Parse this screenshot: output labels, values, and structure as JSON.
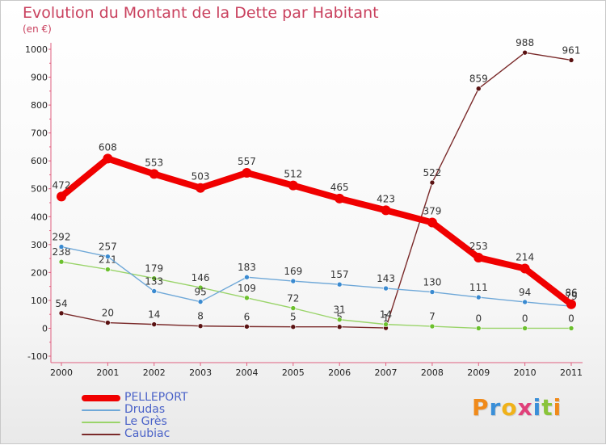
{
  "title": "Evolution du Montant de la Dette par Habitant",
  "subtitle": "(en €)",
  "brand": {
    "text": "Proxiti",
    "letter_colors": [
      "#f08a1a",
      "#3a8fd8",
      "#f0b21a",
      "#e0407a",
      "#3a8fd8",
      "#8ac43a",
      "#f08a1a"
    ]
  },
  "chart_data": {
    "type": "line",
    "categories": [
      "2000",
      "2001",
      "2002",
      "2003",
      "2004",
      "2005",
      "2006",
      "2007",
      "2008",
      "2009",
      "2010",
      "2011"
    ],
    "ylim": [
      -100,
      1000
    ],
    "yticks": [
      -100,
      0,
      100,
      200,
      300,
      400,
      500,
      600,
      700,
      800,
      900,
      1000
    ],
    "ytick_labels": [
      "-100",
      "0",
      "100",
      "200",
      "300",
      "400",
      "500",
      "600",
      "700",
      "800",
      "900",
      "1000"
    ],
    "grid": false,
    "legend_position": "bottom-left",
    "series": [
      {
        "name": "Caubiac",
        "color": "#7a2a2a",
        "marker_color": "#5a1212",
        "values": [
          54,
          20,
          14,
          8,
          6,
          5,
          5,
          1,
          522,
          859,
          988,
          961
        ],
        "labels": [
          "54",
          "20",
          "14",
          "8",
          "6",
          "5",
          "5",
          "1",
          "522",
          "859",
          "988",
          "961"
        ]
      },
      {
        "name": "Le Grès",
        "color": "#9ad46a",
        "marker_color": "#6cc02e",
        "values": [
          238,
          211,
          179,
          146,
          109,
          72,
          31,
          14,
          7,
          0,
          0,
          0
        ],
        "labels": [
          "238",
          "211",
          "179",
          "146",
          "109",
          "72",
          "31",
          "14",
          "7",
          "0",
          "0",
          "0"
        ]
      },
      {
        "name": "Drudas",
        "color": "#6fa8d8",
        "marker_color": "#3a8ad0",
        "values": [
          292,
          257,
          133,
          95,
          183,
          169,
          157,
          143,
          130,
          111,
          94,
          79
        ],
        "labels": [
          "292",
          "257",
          "133",
          "95",
          "183",
          "169",
          "157",
          "143",
          "130",
          "111",
          "94",
          "79"
        ]
      },
      {
        "name": "PELLEPORT",
        "color": "#f00000",
        "marker_color": "#f00000",
        "values": [
          472,
          608,
          553,
          503,
          557,
          512,
          465,
          423,
          379,
          253,
          214,
          86
        ],
        "labels": [
          "472",
          "608",
          "553",
          "503",
          "557",
          "512",
          "465",
          "423",
          "379",
          "253",
          "214",
          "86"
        ]
      }
    ]
  },
  "legend_order": [
    "PELLEPORT",
    "Drudas",
    "Le Grès",
    "Caubiac"
  ]
}
